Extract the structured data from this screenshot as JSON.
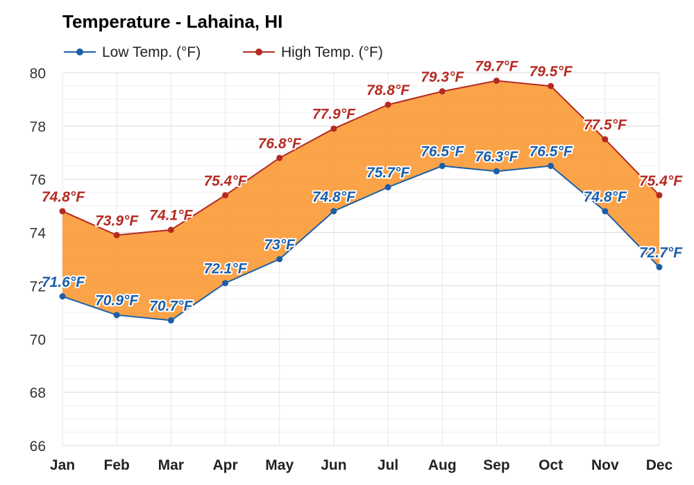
{
  "chart_data": {
    "type": "area",
    "title": "Temperature - Lahaina, HI",
    "categories": [
      "Jan",
      "Feb",
      "Mar",
      "Apr",
      "May",
      "Jun",
      "Jul",
      "Aug",
      "Sep",
      "Oct",
      "Nov",
      "Dec"
    ],
    "series": [
      {
        "name": "Low Temp. (°F)",
        "color": "#1a5ea8",
        "values": [
          71.6,
          70.9,
          70.7,
          72.1,
          73.0,
          74.8,
          75.7,
          76.5,
          76.3,
          76.5,
          74.8,
          72.7
        ],
        "labels": [
          "71.6°F",
          "70.9°F",
          "70.7°F",
          "72.1°F",
          "73°F",
          "74.8°F",
          "75.7°F",
          "76.5°F",
          "76.3°F",
          "76.5°F",
          "74.8°F",
          "72.7°F"
        ]
      },
      {
        "name": "High Temp. (°F)",
        "color": "#b52a22",
        "values": [
          74.8,
          73.9,
          74.1,
          75.4,
          76.8,
          77.9,
          78.8,
          79.3,
          79.7,
          79.5,
          77.5,
          75.4
        ],
        "labels": [
          "74.8°F",
          "73.9°F",
          "74.1°F",
          "75.4°F",
          "76.8°F",
          "77.9°F",
          "78.8°F",
          "79.3°F",
          "79.7°F",
          "79.5°F",
          "77.5°F",
          "75.4°F"
        ]
      }
    ],
    "fill_color": "#fb9b3a",
    "ylim": [
      66,
      80
    ],
    "yticks": [
      66,
      68,
      70,
      72,
      74,
      76,
      78,
      80
    ],
    "xlabel": "",
    "ylabel": "",
    "grid": true,
    "legend_position": "top-left"
  }
}
